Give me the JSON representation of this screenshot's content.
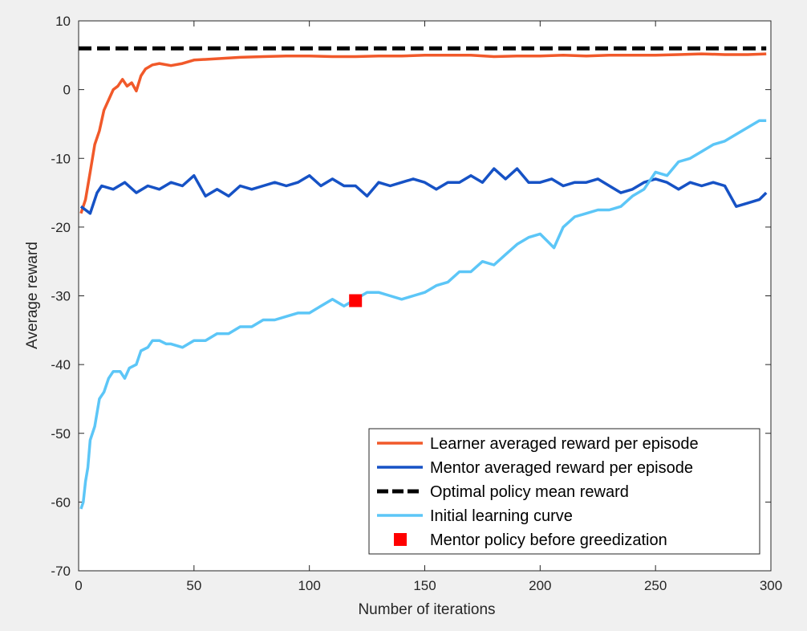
{
  "chart_data": {
    "type": "line",
    "title": "",
    "xlabel": "Number of iterations",
    "ylabel": "Average reward",
    "xlim": [
      0,
      300
    ],
    "ylim": [
      -70,
      10
    ],
    "xticks": [
      0,
      50,
      100,
      150,
      200,
      250,
      300
    ],
    "yticks": [
      -70,
      -60,
      -50,
      -40,
      -30,
      -20,
      -10,
      0,
      10
    ],
    "grid": false,
    "legend_position": "bottom-right",
    "series": [
      {
        "name": "Learner averaged reward per episode",
        "color": "#f1592a",
        "style": "solid",
        "x": [
          1,
          3,
          5,
          7,
          9,
          11,
          13,
          15,
          17,
          19,
          21,
          23,
          25,
          27,
          29,
          32,
          35,
          40,
          45,
          50,
          60,
          70,
          80,
          90,
          100,
          110,
          120,
          130,
          140,
          150,
          160,
          170,
          180,
          190,
          200,
          210,
          220,
          230,
          240,
          250,
          260,
          270,
          280,
          290,
          298
        ],
        "y": [
          -18,
          -16,
          -12,
          -8,
          -6,
          -3,
          -1.5,
          0,
          0.5,
          1.5,
          0.5,
          1,
          -0.2,
          2,
          3,
          3.6,
          3.8,
          3.5,
          3.8,
          4.3,
          4.5,
          4.7,
          4.8,
          4.9,
          4.9,
          4.8,
          4.8,
          4.9,
          4.9,
          5,
          5,
          5,
          4.8,
          4.9,
          4.9,
          5,
          4.9,
          5,
          5,
          5,
          5.1,
          5.2,
          5.1,
          5.1,
          5.2
        ]
      },
      {
        "name": "Mentor averaged reward per episode",
        "color": "#1652c5",
        "style": "solid",
        "x": [
          1,
          3,
          5,
          8,
          10,
          15,
          20,
          25,
          30,
          35,
          40,
          45,
          50,
          55,
          60,
          65,
          70,
          75,
          80,
          85,
          90,
          95,
          100,
          105,
          110,
          115,
          120,
          125,
          130,
          135,
          140,
          145,
          150,
          155,
          160,
          165,
          170,
          175,
          180,
          185,
          190,
          195,
          200,
          205,
          210,
          215,
          220,
          225,
          230,
          235,
          240,
          245,
          250,
          255,
          260,
          265,
          270,
          275,
          280,
          285,
          290,
          295,
          298
        ],
        "y": [
          -17,
          -17.5,
          -18,
          -15,
          -14,
          -14.5,
          -13.5,
          -15,
          -14,
          -14.5,
          -13.5,
          -14,
          -12.5,
          -15.5,
          -14.5,
          -15.5,
          -14,
          -14.5,
          -14,
          -13.5,
          -14,
          -13.5,
          -12.5,
          -14,
          -13,
          -14,
          -14,
          -15.5,
          -13.5,
          -14,
          -13.5,
          -13,
          -13.5,
          -14.5,
          -13.5,
          -13.5,
          -12.5,
          -13.5,
          -11.5,
          -13,
          -11.5,
          -13.5,
          -13.5,
          -13,
          -14,
          -13.5,
          -13.5,
          -13,
          -14,
          -15,
          -14.5,
          -13.5,
          -13,
          -13.5,
          -14.5,
          -13.5,
          -14,
          -13.5,
          -14,
          -17,
          -16.5,
          -16,
          -15
        ]
      },
      {
        "name": "Optimal policy mean reward",
        "color": "#000000",
        "style": "dashed",
        "x": [
          0,
          298
        ],
        "y": [
          6,
          6
        ]
      },
      {
        "name": "Initial learning curve",
        "color": "#5cc6f7",
        "style": "solid",
        "x": [
          1,
          2,
          3,
          4,
          5,
          7,
          9,
          11,
          13,
          15,
          18,
          20,
          22,
          25,
          27,
          30,
          32,
          35,
          38,
          40,
          45,
          50,
          55,
          60,
          65,
          70,
          75,
          80,
          85,
          90,
          95,
          100,
          105,
          110,
          115,
          120,
          125,
          130,
          135,
          140,
          145,
          150,
          155,
          160,
          165,
          170,
          175,
          180,
          185,
          190,
          195,
          200,
          203,
          206,
          210,
          215,
          220,
          225,
          230,
          235,
          240,
          245,
          250,
          255,
          260,
          265,
          270,
          275,
          280,
          285,
          290,
          295,
          298
        ],
        "y": [
          -61,
          -60,
          -57,
          -55,
          -51,
          -49,
          -45,
          -44,
          -42,
          -41,
          -41,
          -42,
          -40.5,
          -40,
          -38,
          -37.5,
          -36.5,
          -36.5,
          -37,
          -37,
          -37.5,
          -36.5,
          -36.5,
          -35.5,
          -35.5,
          -34.5,
          -34.5,
          -33.5,
          -33.5,
          -33,
          -32.5,
          -32.5,
          -31.5,
          -30.5,
          -31.5,
          -30.5,
          -29.5,
          -29.5,
          -30,
          -30.5,
          -30,
          -29.5,
          -28.5,
          -28,
          -26.5,
          -26.5,
          -25,
          -25.5,
          -24,
          -22.5,
          -21.5,
          -21,
          -22,
          -23,
          -20,
          -18.5,
          -18,
          -17.5,
          -17.5,
          -17,
          -15.5,
          -14.5,
          -12,
          -12.5,
          -10.5,
          -10,
          -9,
          -8,
          -7.5,
          -6.5,
          -5.5,
          -4.5,
          -4.5
        ]
      }
    ],
    "markers": [
      {
        "name": "Mentor policy before greedization",
        "color": "#ff0000",
        "shape": "square",
        "x": 120,
        "y": -30.7
      }
    ]
  }
}
